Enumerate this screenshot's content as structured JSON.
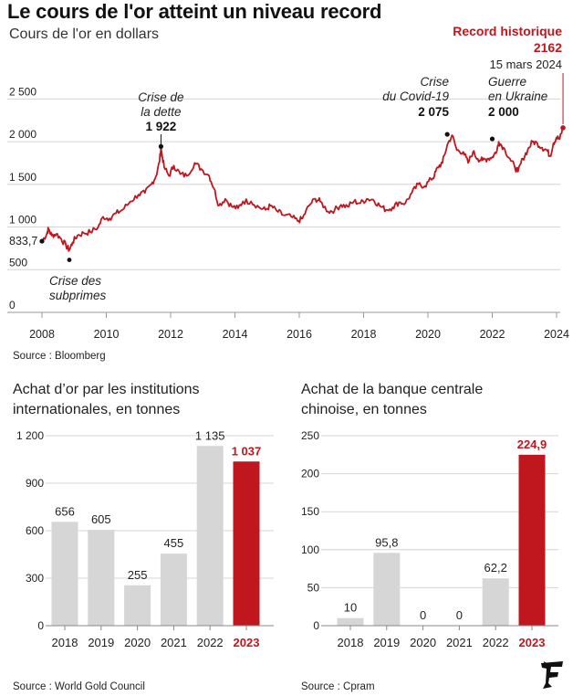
{
  "header": {
    "title": "Le cours de l'or atteint un niveau record",
    "subtitle": "Cours de l'or en dollars"
  },
  "colors": {
    "accent": "#c0161d",
    "bar_grey": "#d6d6d6",
    "grid": "#d4d4d4",
    "text": "#222222"
  },
  "sources": {
    "top": "Source : Bloomberg",
    "left": "Source : World Gold Council",
    "right": "Source : Cpram"
  },
  "chart_data": [
    {
      "type": "line",
      "title": "Cours de l'or en dollars",
      "ylim": [
        0,
        2600
      ],
      "yticks": [
        "0",
        "500",
        "1 000",
        "1 500",
        "2 000",
        "2 500"
      ],
      "ytick_values": [
        0,
        500,
        1000,
        1500,
        2000,
        2500
      ],
      "xticks": [
        "2008",
        "2010",
        "2012",
        "2014",
        "2016",
        "2018",
        "2020",
        "2022",
        "2024"
      ],
      "xtick_values": [
        2008,
        2010,
        2012,
        2014,
        2016,
        2018,
        2020,
        2022,
        2024
      ],
      "grid": true,
      "series": [
        {
          "x": [
            2008.0,
            2008.15,
            2008.2,
            2008.3,
            2008.45,
            2008.6,
            2008.75,
            2008.85,
            2008.95,
            2009.1,
            2009.3,
            2009.5,
            2009.75,
            2009.9,
            2010.1,
            2010.3,
            2010.5,
            2010.75,
            2011.0,
            2011.2,
            2011.4,
            2011.55,
            2011.65,
            2011.7,
            2011.8,
            2011.95,
            2012.1,
            2012.3,
            2012.5,
            2012.75,
            2012.95,
            2013.2,
            2013.35,
            2013.5,
            2013.7,
            2013.9,
            2014.1,
            2014.25,
            2014.5,
            2014.75,
            2014.95,
            2015.1,
            2015.3,
            2015.5,
            2015.75,
            2015.95,
            2016.1,
            2016.3,
            2016.5,
            2016.65,
            2016.9,
            2017.1,
            2017.3,
            2017.5,
            2017.7,
            2017.9,
            2018.1,
            2018.3,
            2018.5,
            2018.7,
            2018.9,
            2019.1,
            2019.3,
            2019.5,
            2019.7,
            2019.9,
            2020.1,
            2020.2,
            2020.3,
            2020.45,
            2020.6,
            2020.75,
            2020.9,
            2021.1,
            2021.25,
            2021.4,
            2021.55,
            2021.7,
            2021.85,
            2022.0,
            2022.15,
            2022.2,
            2022.35,
            2022.55,
            2022.7,
            2022.8,
            2022.95,
            2023.1,
            2023.25,
            2023.4,
            2023.55,
            2023.7,
            2023.8,
            2023.9,
            2024.0,
            2024.1,
            2024.2
          ],
          "values": [
            833.7,
            920,
            980,
            900,
            920,
            860,
            780,
            730,
            820,
            900,
            930,
            940,
            1000,
            1120,
            1100,
            1160,
            1200,
            1300,
            1380,
            1400,
            1500,
            1600,
            1760,
            1922,
            1700,
            1600,
            1720,
            1620,
            1600,
            1750,
            1680,
            1600,
            1450,
            1250,
            1330,
            1240,
            1220,
            1300,
            1300,
            1230,
            1200,
            1250,
            1190,
            1140,
            1120,
            1070,
            1100,
            1250,
            1330,
            1300,
            1180,
            1200,
            1260,
            1240,
            1300,
            1280,
            1330,
            1320,
            1250,
            1200,
            1230,
            1290,
            1280,
            1400,
            1500,
            1480,
            1560,
            1600,
            1700,
            1750,
            1960,
            2075,
            1900,
            1880,
            1750,
            1880,
            1800,
            1780,
            1800,
            1820,
            1900,
            2000,
            1930,
            1800,
            1700,
            1650,
            1800,
            1900,
            2000,
            1980,
            1930,
            1900,
            1830,
            1980,
            2050,
            2030,
            2162
          ]
        }
      ],
      "annotations": [
        {
          "label": "833,7",
          "x": 2008.0,
          "y": 833.7
        },
        {
          "label_lines": [
            "Crise des",
            "subprimes"
          ],
          "x": 2008.85,
          "y": 700
        },
        {
          "label_lines": [
            "Crise de",
            "la dette"
          ],
          "value_label": "1 922",
          "x": 2011.7,
          "y": 1922
        },
        {
          "label_lines": [
            "Crise",
            "du Covid-19"
          ],
          "value_label": "2 075",
          "x": 2020.6,
          "y": 2075
        },
        {
          "label_lines": [
            "Guerre",
            "en Ukraine"
          ],
          "value_label": "2 000",
          "x": 2022.0,
          "y": 2000
        },
        {
          "label_lines": [
            "Record historique"
          ],
          "value_label": "2162",
          "date": "15 mars 2024",
          "x": 2024.2,
          "y": 2162
        }
      ]
    },
    {
      "type": "bar",
      "title": "Achat d’or par les institutions internationales, en tonnes",
      "title_lines": [
        "Achat d’or par les institutions",
        "internationales, en tonnes"
      ],
      "categories": [
        "2018",
        "2019",
        "2020",
        "2021",
        "2022",
        "2023"
      ],
      "values": [
        656,
        605,
        255,
        455,
        1135,
        1037
      ],
      "value_labels": [
        "656",
        "605",
        "255",
        "455",
        "1 135",
        "1 037"
      ],
      "highlight_index": 5,
      "ylim": [
        0,
        1200
      ],
      "yticks": [
        "0",
        "300",
        "600",
        "900",
        "1 200"
      ],
      "ytick_values": [
        0,
        300,
        600,
        900,
        1200
      ],
      "grid": true
    },
    {
      "type": "bar",
      "title": "Achat de la banque centrale chinoise, en tonnes",
      "title_lines": [
        "Achat de la banque centrale",
        "chinoise, en tonnes"
      ],
      "categories": [
        "2018",
        "2019",
        "2020",
        "2021",
        "2022",
        "2023"
      ],
      "values": [
        10,
        95.8,
        0,
        0,
        62.2,
        224.9
      ],
      "value_labels": [
        "10",
        "95,8",
        "0",
        "0",
        "62,2",
        "224,9"
      ],
      "highlight_index": 5,
      "ylim": [
        0,
        250
      ],
      "yticks": [
        "0",
        "50",
        "100",
        "150",
        "200",
        "250"
      ],
      "ytick_values": [
        0,
        50,
        100,
        150,
        200,
        250
      ],
      "grid": true
    }
  ]
}
